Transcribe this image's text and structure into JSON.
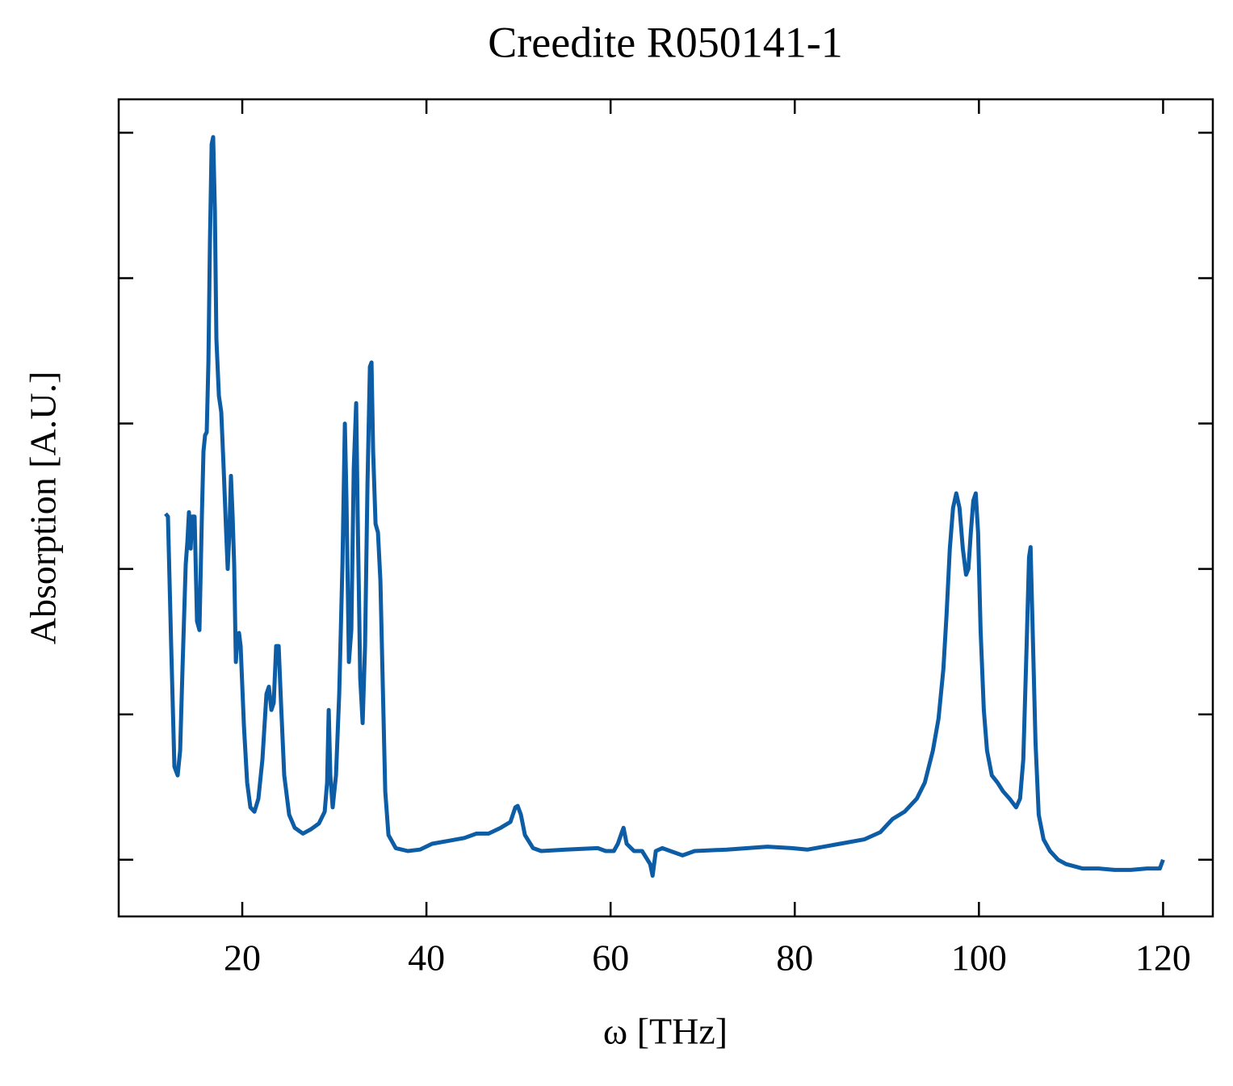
{
  "chart_data": {
    "type": "line",
    "title": "Creedite R050141-1",
    "xlabel": "ω [THz]",
    "ylabel": "Absorption [A.U.]",
    "x": [
      11.67,
      11.93,
      12.28,
      12.63,
      12.98,
      13.25,
      13.51,
      13.86,
      14.04,
      14.21,
      14.39,
      14.56,
      14.82,
      15.09,
      15.35,
      15.61,
      15.79,
      15.96,
      16.14,
      16.32,
      16.49,
      16.67,
      16.84,
      17.02,
      17.19,
      17.46,
      17.72,
      17.98,
      18.25,
      18.42,
      18.6,
      18.77,
      18.95,
      19.12,
      19.3,
      19.47,
      19.65,
      19.82,
      20.18,
      20.53,
      20.88,
      21.32,
      21.75,
      22.19,
      22.63,
      22.89,
      23.16,
      23.42,
      23.68,
      23.95,
      24.21,
      24.56,
      25.09,
      25.7,
      26.58,
      27.46,
      28.33,
      28.95,
      29.21,
      29.39,
      29.56,
      29.82,
      30.18,
      30.53,
      30.88,
      31.14,
      31.32,
      31.58,
      31.84,
      32.11,
      32.37,
      32.54,
      32.81,
      33.07,
      33.33,
      33.6,
      33.86,
      34.04,
      34.21,
      34.47,
      34.74,
      35.0,
      35.26,
      35.53,
      35.88,
      36.67,
      37.98,
      39.3,
      40.61,
      42.37,
      44.12,
      45.44,
      46.75,
      48.07,
      49.12,
      49.65,
      49.91,
      50.26,
      50.7,
      51.58,
      52.46,
      55.09,
      58.6,
      59.47,
      60.35,
      60.79,
      61.23,
      61.4,
      61.75,
      62.54,
      63.42,
      64.3,
      64.56,
      64.91,
      65.61,
      66.49,
      67.81,
      69.12,
      72.63,
      77.02,
      79.65,
      81.4,
      84.91,
      87.54,
      89.3,
      90.61,
      91.93,
      93.25,
      94.12,
      95.0,
      95.61,
      96.14,
      96.49,
      96.84,
      97.19,
      97.54,
      97.89,
      98.25,
      98.6,
      98.86,
      99.12,
      99.39,
      99.65,
      99.91,
      100.18,
      100.53,
      100.88,
      101.4,
      102.02,
      102.63,
      103.33,
      104.04,
      104.47,
      104.82,
      105.18,
      105.44,
      105.61,
      105.79,
      106.14,
      106.49,
      107.02,
      107.72,
      108.6,
      109.47,
      111.23,
      112.98,
      114.74,
      116.49,
      118.25,
      119.65,
      120.0
    ],
    "series": [
      {
        "color": "#0c5da5",
        "values": [
          2.38,
          2.36,
          1.47,
          0.64,
          0.58,
          0.75,
          1.31,
          2.03,
          2.19,
          2.39,
          2.14,
          2.36,
          2.36,
          1.64,
          1.58,
          2.36,
          2.81,
          2.92,
          2.94,
          3.42,
          4.25,
          4.92,
          4.97,
          4.47,
          3.58,
          3.19,
          3.08,
          2.69,
          2.25,
          2.0,
          2.25,
          2.64,
          2.36,
          2.03,
          1.36,
          1.53,
          1.56,
          1.47,
          0.92,
          0.53,
          0.36,
          0.33,
          0.42,
          0.69,
          1.14,
          1.19,
          1.03,
          1.08,
          1.47,
          1.47,
          1.08,
          0.58,
          0.31,
          0.22,
          0.18,
          0.21,
          0.25,
          0.33,
          0.53,
          1.03,
          0.58,
          0.36,
          0.58,
          1.14,
          2.03,
          3.0,
          2.47,
          1.36,
          1.58,
          2.69,
          3.14,
          2.36,
          1.25,
          0.94,
          1.47,
          2.58,
          3.39,
          3.42,
          2.81,
          2.31,
          2.25,
          1.92,
          1.19,
          0.47,
          0.17,
          0.08,
          0.06,
          0.07,
          0.11,
          0.13,
          0.15,
          0.18,
          0.18,
          0.22,
          0.26,
          0.36,
          0.37,
          0.31,
          0.17,
          0.08,
          0.06,
          0.07,
          0.08,
          0.06,
          0.06,
          0.11,
          0.19,
          0.22,
          0.11,
          0.06,
          0.06,
          -0.03,
          -0.11,
          0.06,
          0.08,
          0.06,
          0.03,
          0.06,
          0.07,
          0.09,
          0.08,
          0.07,
          0.11,
          0.14,
          0.19,
          0.28,
          0.33,
          0.42,
          0.53,
          0.75,
          0.97,
          1.31,
          1.69,
          2.14,
          2.42,
          2.52,
          2.42,
          2.14,
          1.96,
          2.0,
          2.25,
          2.47,
          2.52,
          2.25,
          1.58,
          1.03,
          0.75,
          0.58,
          0.53,
          0.47,
          0.42,
          0.36,
          0.42,
          0.69,
          1.47,
          2.08,
          2.15,
          1.69,
          0.81,
          0.31,
          0.14,
          0.06,
          0,
          -0.03,
          -0.06,
          -0.06,
          -0.07,
          -0.07,
          -0.06,
          -0.06,
          0
        ]
      }
    ],
    "xlim": [
      6.58,
      125.4
    ],
    "xticks": [
      20,
      40,
      60,
      80,
      100,
      120
    ],
    "ylim": [
      -0.39,
      5.23
    ],
    "yticks": [
      0,
      1,
      2,
      3,
      4,
      5
    ]
  }
}
